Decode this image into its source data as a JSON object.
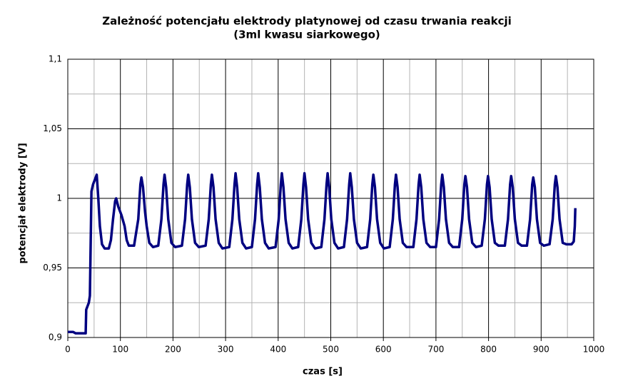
{
  "chart_data": {
    "type": "line",
    "title": "Zależność potencjału elektrody platynowej od czasu trwania reakcji",
    "subtitle": "(3ml kwasu siarkowego)",
    "xlabel": "czas [s]",
    "ylabel": "potencjał elektrody [V]",
    "xlim": [
      0,
      1000
    ],
    "xticks": [
      0,
      100,
      200,
      300,
      400,
      500,
      600,
      700,
      800,
      900,
      1000
    ],
    "minor_xticks": [
      50,
      150,
      250,
      350,
      450,
      550,
      650,
      750,
      850,
      950
    ],
    "ylim": [
      0.9,
      1.1
    ],
    "yticks": [
      {
        "value": 0.9,
        "label": "0,9"
      },
      {
        "value": 0.95,
        "label": "0,95"
      },
      1,
      {
        "value": 1.05,
        "label": "1,05"
      },
      {
        "value": 1.1,
        "label": "1,1"
      }
    ],
    "minor_yticks": [
      0.925,
      0.975,
      1.025,
      1.075
    ],
    "grid": true,
    "series": [
      {
        "color": "#000080",
        "x": [
          0,
          10,
          15,
          34,
          35,
          40,
          42,
          43,
          45,
          48,
          52,
          55,
          58,
          61,
          65,
          70,
          78,
          82,
          86,
          90,
          92,
          96,
          102,
          108,
          112,
          116,
          126,
          134,
          138,
          140,
          143,
          147,
          150,
          155,
          162,
          172,
          178,
          182,
          184,
          187,
          191,
          197,
          204,
          217,
          223,
          227,
          229,
          232,
          236,
          242,
          249,
          262,
          268,
          272,
          274,
          277,
          281,
          287,
          294,
          307,
          313,
          317,
          319,
          322,
          326,
          332,
          339,
          350,
          356,
          360,
          362,
          365,
          369,
          375,
          382,
          395,
          401,
          405,
          407,
          410,
          414,
          420,
          427,
          438,
          444,
          448,
          450,
          453,
          457,
          463,
          470,
          482,
          488,
          492,
          494,
          497,
          501,
          507,
          514,
          525,
          531,
          535,
          537,
          540,
          544,
          550,
          557,
          569,
          575,
          579,
          581,
          584,
          588,
          594,
          601,
          612,
          618,
          622,
          624,
          627,
          631,
          637,
          644,
          657,
          663,
          667,
          669,
          672,
          676,
          682,
          689,
          700,
          706,
          710,
          712,
          715,
          719,
          725,
          732,
          744,
          750,
          754,
          756,
          759,
          763,
          769,
          776,
          787,
          793,
          797,
          799,
          802,
          806,
          812,
          819,
          831,
          837,
          841,
          843,
          846,
          850,
          856,
          863,
          873,
          879,
          883,
          885,
          888,
          892,
          898,
          905,
          916,
          922,
          926,
          928,
          931,
          935,
          941,
          948,
          958,
          962,
          964,
          965
        ],
        "values": [
          0.904,
          0.904,
          0.903,
          0.903,
          0.92,
          0.925,
          0.93,
          0.955,
          1.005,
          1.01,
          1.014,
          1.017,
          1.0,
          0.98,
          0.967,
          0.964,
          0.964,
          0.97,
          0.985,
          0.998,
          1.0,
          0.994,
          0.988,
          0.98,
          0.97,
          0.966,
          0.966,
          0.985,
          1.01,
          1.015,
          1.008,
          0.99,
          0.98,
          0.968,
          0.965,
          0.966,
          0.985,
          1.01,
          1.017,
          1.008,
          0.985,
          0.968,
          0.965,
          0.966,
          0.985,
          1.01,
          1.017,
          1.008,
          0.985,
          0.968,
          0.965,
          0.966,
          0.985,
          1.01,
          1.017,
          1.008,
          0.985,
          0.968,
          0.964,
          0.965,
          0.985,
          1.01,
          1.018,
          1.008,
          0.985,
          0.968,
          0.964,
          0.965,
          0.985,
          1.01,
          1.018,
          1.008,
          0.985,
          0.968,
          0.964,
          0.965,
          0.985,
          1.01,
          1.018,
          1.008,
          0.985,
          0.968,
          0.964,
          0.965,
          0.985,
          1.01,
          1.018,
          1.008,
          0.985,
          0.968,
          0.964,
          0.965,
          0.985,
          1.01,
          1.018,
          1.008,
          0.985,
          0.968,
          0.964,
          0.965,
          0.985,
          1.01,
          1.018,
          1.008,
          0.985,
          0.968,
          0.964,
          0.965,
          0.985,
          1.01,
          1.017,
          1.008,
          0.985,
          0.968,
          0.964,
          0.965,
          0.985,
          1.01,
          1.017,
          1.008,
          0.985,
          0.968,
          0.965,
          0.965,
          0.985,
          1.01,
          1.017,
          1.008,
          0.985,
          0.968,
          0.965,
          0.965,
          0.985,
          1.01,
          1.017,
          1.008,
          0.985,
          0.968,
          0.965,
          0.965,
          0.985,
          1.01,
          1.016,
          1.008,
          0.985,
          0.968,
          0.965,
          0.966,
          0.985,
          1.01,
          1.016,
          1.008,
          0.985,
          0.968,
          0.966,
          0.966,
          0.985,
          1.01,
          1.016,
          1.008,
          0.985,
          0.968,
          0.966,
          0.966,
          0.985,
          1.01,
          1.015,
          1.008,
          0.985,
          0.968,
          0.966,
          0.967,
          0.985,
          1.01,
          1.016,
          1.008,
          0.985,
          0.968,
          0.967,
          0.967,
          0.969,
          0.98,
          0.993
        ]
      }
    ]
  }
}
